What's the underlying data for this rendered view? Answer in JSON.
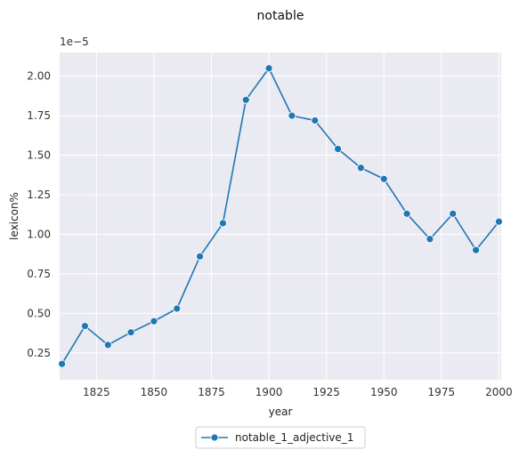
{
  "chart_data": {
    "type": "line",
    "title": "notable",
    "xlabel": "year",
    "ylabel": "lexicon%",
    "offset_label": "1e−5",
    "x": [
      1810,
      1820,
      1830,
      1840,
      1850,
      1860,
      1870,
      1880,
      1890,
      1900,
      1910,
      1920,
      1930,
      1940,
      1950,
      1960,
      1970,
      1980,
      1990,
      2000
    ],
    "series": [
      {
        "name": "notable_1_adjective_1",
        "color": "#1f77b4",
        "values": [
          0.18,
          0.42,
          0.3,
          0.38,
          0.45,
          0.53,
          0.86,
          1.07,
          1.85,
          2.05,
          1.75,
          1.72,
          1.54,
          1.42,
          1.35,
          1.13,
          0.97,
          1.13,
          0.9,
          1.08
        ]
      }
    ],
    "xlim": [
      1809,
      2001
    ],
    "ylim": [
      0.08,
      2.15
    ],
    "xticks": [
      1825,
      1850,
      1875,
      1900,
      1925,
      1950,
      1975,
      2000
    ],
    "xtick_labels": [
      "1825",
      "1850",
      "1875",
      "1900",
      "1925",
      "1950",
      "1975",
      "2000"
    ],
    "yticks": [
      0.25,
      0.5,
      0.75,
      1.0,
      1.25,
      1.5,
      1.75,
      2.0
    ],
    "ytick_labels": [
      "0.25",
      "0.50",
      "0.75",
      "1.00",
      "1.25",
      "1.50",
      "1.75",
      "2.00"
    ],
    "grid": true,
    "legend_position": "bottom-center",
    "background": "#eaeaf2"
  }
}
